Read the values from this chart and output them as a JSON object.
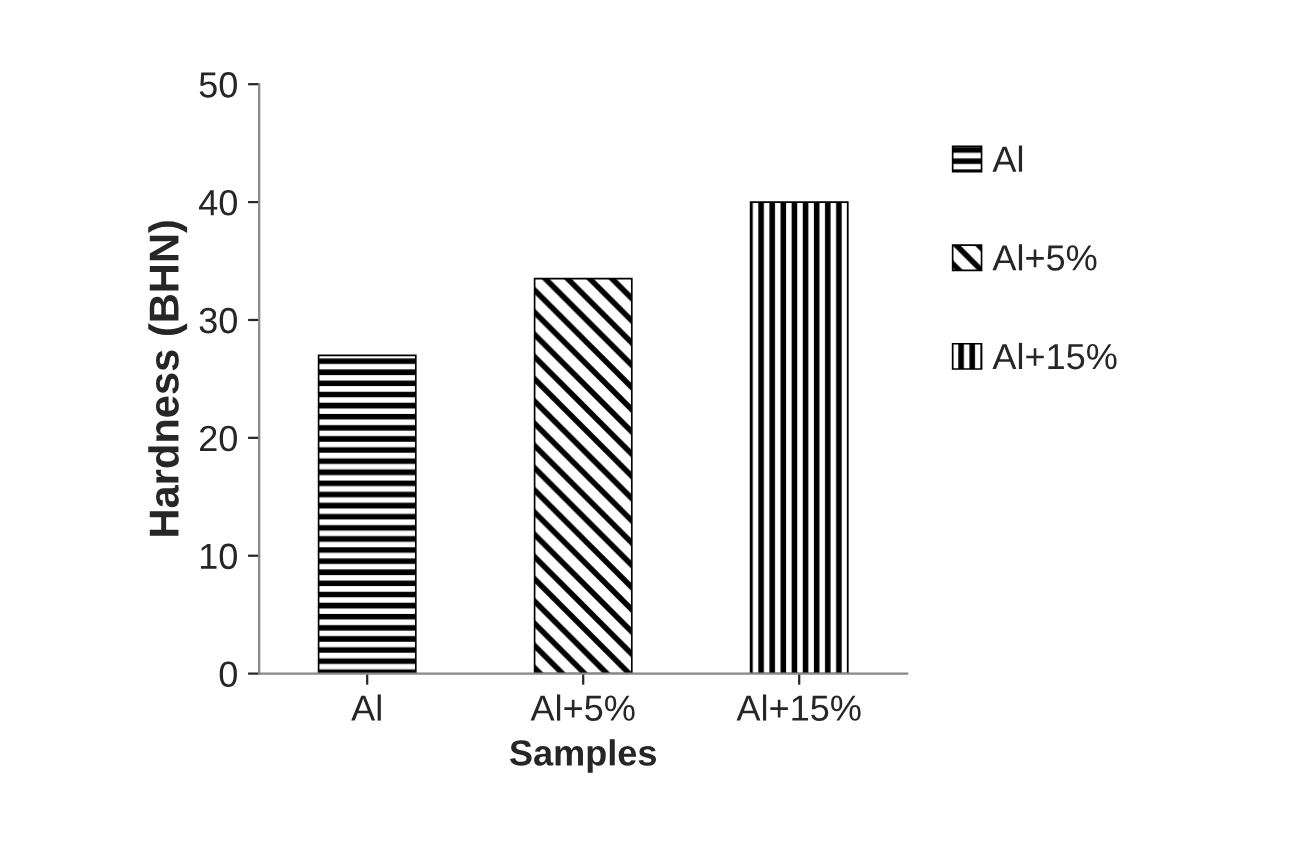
{
  "chart_data": {
    "type": "bar",
    "xlabel": "Samples",
    "ylabel": "Hardness (BHN)",
    "categories": [
      "Al",
      "Al+5%",
      "Al+15%"
    ],
    "series": [
      {
        "name": "Al",
        "color": "#000000",
        "values": [
          27,
          null,
          null
        ]
      },
      {
        "name": "Al+5%",
        "color": "#000000",
        "values": [
          null,
          33.5,
          null
        ]
      },
      {
        "name": "Al+15%",
        "color": "#000000",
        "values": [
          null,
          null,
          40
        ]
      }
    ],
    "ylim": [
      0,
      50
    ],
    "yticks": [
      0,
      10,
      20,
      30,
      40,
      50
    ],
    "grid": false,
    "legend": "right"
  }
}
